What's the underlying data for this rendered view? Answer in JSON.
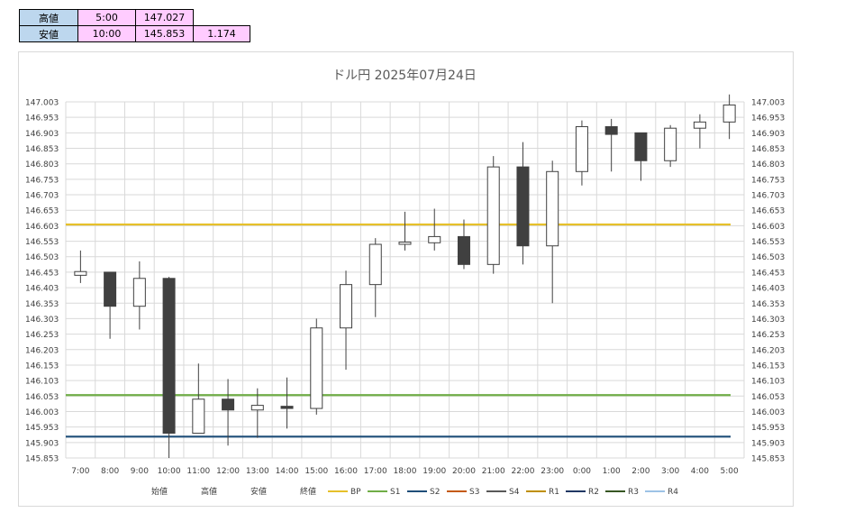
{
  "summary": {
    "high": {
      "label": "高値",
      "time": "5:00",
      "price": "147.027"
    },
    "low": {
      "label": "安値",
      "time": "10:00",
      "price": "145.853",
      "range": "1.174"
    }
  },
  "chart_data": {
    "type": "candlestick",
    "title": "ドル円  2025年07月24日",
    "ylim": [
      145.853,
      147.003
    ],
    "yticks": [
      "147.003",
      "146.953",
      "146.903",
      "146.853",
      "146.803",
      "146.753",
      "146.703",
      "146.653",
      "146.603",
      "146.553",
      "146.503",
      "146.453",
      "146.403",
      "146.353",
      "146.303",
      "146.253",
      "146.203",
      "146.153",
      "146.103",
      "146.053",
      "146.003",
      "145.953",
      "145.903",
      "145.853"
    ],
    "categories": [
      "7:00",
      "8:00",
      "9:00",
      "10:00",
      "11:00",
      "12:00",
      "13:00",
      "14:00",
      "15:00",
      "16:00",
      "17:00",
      "18:00",
      "19:00",
      "20:00",
      "21:00",
      "22:00",
      "23:00",
      "0:00",
      "1:00",
      "2:00",
      "3:00",
      "4:00",
      "5:00"
    ],
    "candles": [
      {
        "open": 146.443,
        "high": 146.523,
        "low": 146.418,
        "close": 146.455
      },
      {
        "open": 146.453,
        "high": 146.453,
        "low": 146.238,
        "close": 146.343
      },
      {
        "open": 146.343,
        "high": 146.488,
        "low": 146.268,
        "close": 146.433
      },
      {
        "open": 146.433,
        "high": 146.438,
        "low": 145.853,
        "close": 145.933
      },
      {
        "open": 145.933,
        "high": 146.158,
        "low": 145.933,
        "close": 146.043
      },
      {
        "open": 146.043,
        "high": 146.108,
        "low": 145.893,
        "close": 146.008
      },
      {
        "open": 146.008,
        "high": 146.078,
        "low": 145.918,
        "close": 146.023
      },
      {
        "open": 146.02,
        "high": 146.113,
        "low": 145.948,
        "close": 146.013
      },
      {
        "open": 146.013,
        "high": 146.303,
        "low": 145.993,
        "close": 146.273
      },
      {
        "open": 146.273,
        "high": 146.458,
        "low": 146.138,
        "close": 146.413
      },
      {
        "open": 146.413,
        "high": 146.563,
        "low": 146.308,
        "close": 146.543
      },
      {
        "open": 146.543,
        "high": 146.648,
        "low": 146.523,
        "close": 146.55
      },
      {
        "open": 146.548,
        "high": 146.658,
        "low": 146.523,
        "close": 146.568
      },
      {
        "open": 146.568,
        "high": 146.623,
        "low": 146.463,
        "close": 146.478
      },
      {
        "open": 146.478,
        "high": 146.828,
        "low": 146.448,
        "close": 146.793
      },
      {
        "open": 146.793,
        "high": 146.873,
        "low": 146.478,
        "close": 146.538
      },
      {
        "open": 146.538,
        "high": 146.813,
        "low": 146.353,
        "close": 146.778
      },
      {
        "open": 146.778,
        "high": 146.943,
        "low": 146.733,
        "close": 146.923
      },
      {
        "open": 146.923,
        "high": 146.948,
        "low": 146.778,
        "close": 146.898
      },
      {
        "open": 146.903,
        "high": 146.903,
        "low": 146.748,
        "close": 146.813
      },
      {
        "open": 146.813,
        "high": 146.928,
        "low": 146.793,
        "close": 146.918
      },
      {
        "open": 146.918,
        "high": 146.963,
        "low": 146.853,
        "close": 146.938
      },
      {
        "open": 146.938,
        "high": 147.027,
        "low": 146.883,
        "close": 146.993
      }
    ],
    "levels": [
      {
        "name": "BP",
        "value": 146.607,
        "color": "#e6c02a"
      },
      {
        "name": "S1",
        "value": 146.056,
        "color": "#70ad47"
      },
      {
        "name": "S2",
        "value": 145.922,
        "color": "#1f4e79"
      },
      {
        "name": "S3",
        "value": null,
        "color": "#c55a11"
      },
      {
        "name": "S4",
        "value": null,
        "color": "#595959"
      },
      {
        "name": "R1",
        "value": null,
        "color": "#bf8f00"
      },
      {
        "name": "R2",
        "value": null,
        "color": "#203864"
      },
      {
        "name": "R3",
        "value": null,
        "color": "#375623"
      },
      {
        "name": "R4",
        "value": null,
        "color": "#9dc3e6"
      }
    ],
    "legend": {
      "position": "bottom",
      "ohlc_labels": [
        "始値",
        "高値",
        "安値",
        "終値"
      ]
    },
    "grid": true,
    "up_color": "#ffffff",
    "down_color": "#404040"
  }
}
